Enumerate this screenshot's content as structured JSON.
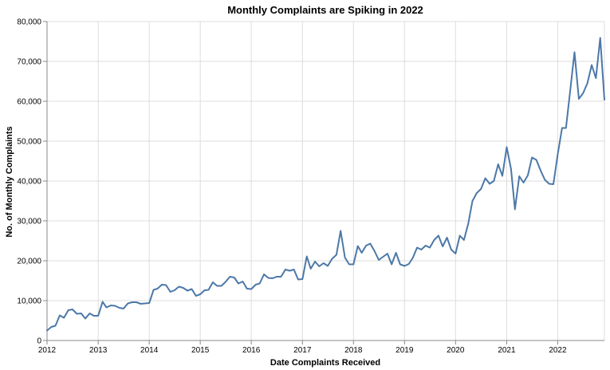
{
  "chart_data": {
    "type": "line",
    "title": "Monthly Complaints are Spiking in 2022",
    "xlabel": "Date Complaints Received",
    "ylabel": "No. of Monthly Complaints",
    "x_tick_labels": [
      "2012",
      "2013",
      "2014",
      "2015",
      "2016",
      "2017",
      "2018",
      "2019",
      "2020",
      "2021",
      "2022"
    ],
    "y_tick_labels": [
      "0",
      "10,000",
      "20,000",
      "30,000",
      "40,000",
      "50,000",
      "60,000",
      "70,000",
      "80,000"
    ],
    "x_domain": [
      "2012-01-01",
      "2022-12-01"
    ],
    "ylim": [
      0,
      80000
    ],
    "y_tick_step": 10000,
    "grid": true,
    "line_color": "#4c78a8",
    "series": [
      {
        "x": [
          "2012-01",
          "2012-02",
          "2012-03",
          "2012-04",
          "2012-05",
          "2012-06",
          "2012-07",
          "2012-08",
          "2012-09",
          "2012-10",
          "2012-11",
          "2012-12",
          "2013-01",
          "2013-02",
          "2013-03",
          "2013-04",
          "2013-05",
          "2013-06",
          "2013-07",
          "2013-08",
          "2013-09",
          "2013-10",
          "2013-11",
          "2013-12",
          "2014-01",
          "2014-02",
          "2014-03",
          "2014-04",
          "2014-05",
          "2014-06",
          "2014-07",
          "2014-08",
          "2014-09",
          "2014-10",
          "2014-11",
          "2014-12",
          "2015-01",
          "2015-02",
          "2015-03",
          "2015-04",
          "2015-05",
          "2015-06",
          "2015-07",
          "2015-08",
          "2015-09",
          "2015-10",
          "2015-11",
          "2015-12",
          "2016-01",
          "2016-02",
          "2016-03",
          "2016-04",
          "2016-05",
          "2016-06",
          "2016-07",
          "2016-08",
          "2016-09",
          "2016-10",
          "2016-11",
          "2016-12",
          "2017-01",
          "2017-02",
          "2017-03",
          "2017-04",
          "2017-05",
          "2017-06",
          "2017-07",
          "2017-08",
          "2017-09",
          "2017-10",
          "2017-11",
          "2017-12",
          "2018-01",
          "2018-02",
          "2018-03",
          "2018-04",
          "2018-05",
          "2018-06",
          "2018-07",
          "2018-08",
          "2018-09",
          "2018-10",
          "2018-11",
          "2018-12",
          "2019-01",
          "2019-02",
          "2019-03",
          "2019-04",
          "2019-05",
          "2019-06",
          "2019-07",
          "2019-08",
          "2019-09",
          "2019-10",
          "2019-11",
          "2019-12",
          "2020-01",
          "2020-02",
          "2020-03",
          "2020-04",
          "2020-05",
          "2020-06",
          "2020-07",
          "2020-08",
          "2020-09",
          "2020-10",
          "2020-11",
          "2020-12",
          "2021-01",
          "2021-02",
          "2021-03",
          "2021-04",
          "2021-05",
          "2021-06",
          "2021-07",
          "2021-08",
          "2021-09",
          "2021-10",
          "2021-11",
          "2021-12",
          "2022-01",
          "2022-02",
          "2022-03",
          "2022-04",
          "2022-05",
          "2022-06",
          "2022-07",
          "2022-08",
          "2022-09",
          "2022-10",
          "2022-11",
          "2022-12"
        ],
        "y": [
          2500,
          3400,
          3700,
          6300,
          5700,
          7600,
          7800,
          6700,
          6800,
          5500,
          6800,
          6200,
          6200,
          9700,
          8300,
          8800,
          8700,
          8200,
          8000,
          9300,
          9600,
          9600,
          9200,
          9300,
          9400,
          12700,
          13000,
          14000,
          13900,
          12200,
          12600,
          13500,
          13200,
          12500,
          12900,
          11200,
          11600,
          12600,
          12700,
          14600,
          13700,
          13700,
          14700,
          16000,
          15800,
          14300,
          14800,
          13000,
          12900,
          14000,
          14300,
          16600,
          15700,
          15600,
          16000,
          16000,
          17800,
          17500,
          17800,
          15300,
          15400,
          21100,
          18000,
          19800,
          18600,
          19400,
          18700,
          20500,
          21500,
          27500,
          20800,
          19100,
          19100,
          23700,
          22000,
          23800,
          24300,
          22400,
          20200,
          21000,
          21800,
          19100,
          22000,
          19100,
          18700,
          19200,
          20700,
          23300,
          22800,
          23800,
          23300,
          25200,
          26300,
          23600,
          25800,
          22800,
          21800,
          26300,
          25200,
          29300,
          35000,
          37000,
          38000,
          40700,
          39300,
          40000,
          44200,
          41300,
          48500,
          43000,
          32900,
          41200,
          39600,
          41400,
          45900,
          45300,
          42600,
          40300,
          39300,
          39200,
          46700,
          53300,
          53300,
          62900,
          72300,
          60600,
          62000,
          64500,
          69100,
          65800,
          75900,
          60400
        ]
      }
    ]
  }
}
